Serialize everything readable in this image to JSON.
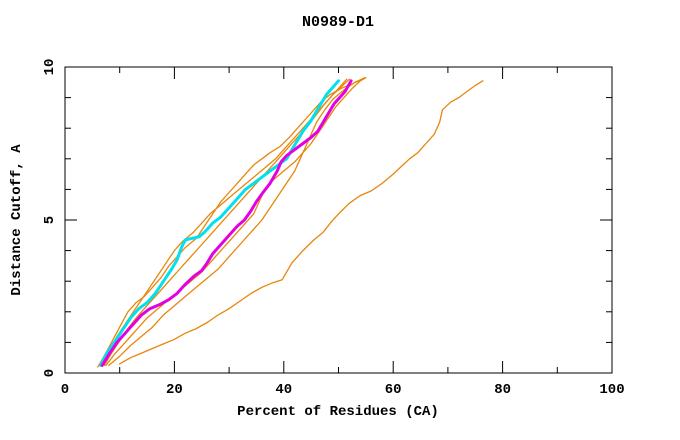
{
  "title": "N0989-D1",
  "colors": {
    "background": "#ffffff",
    "axis": "#000000",
    "orange": "#e8860b",
    "cyan": "#00e0ee",
    "magenta": "#e300e3"
  },
  "chart_data": {
    "type": "line",
    "title": "N0989-D1",
    "xlabel": "Percent of Residues (CA)",
    "ylabel": "Distance Cutoff, A",
    "xlim": [
      0,
      100
    ],
    "ylim": [
      0,
      10
    ],
    "x_major_ticks": [
      0,
      20,
      40,
      60,
      80,
      100
    ],
    "x_minor_step": 10,
    "y_major_ticks": [
      0,
      5,
      10
    ],
    "y_minor_step": 1,
    "grid": false,
    "legend_position": "none",
    "series": [
      {
        "name": "model-orange-1",
        "color": "#e8860b",
        "width": 1.3,
        "points": [
          [
            6,
            0.2
          ],
          [
            7,
            0.5
          ],
          [
            8.5,
            1.0
          ],
          [
            10,
            1.5
          ],
          [
            11.5,
            2.0
          ],
          [
            13,
            2.3
          ],
          [
            14.5,
            2.5
          ],
          [
            16,
            2.8
          ],
          [
            17.5,
            3.1
          ],
          [
            19,
            3.5
          ],
          [
            20.5,
            3.8
          ],
          [
            22,
            4.1
          ],
          [
            24,
            4.4
          ],
          [
            25.5,
            4.8
          ],
          [
            27,
            5.2
          ],
          [
            28.5,
            5.6
          ],
          [
            30,
            5.9
          ],
          [
            31.5,
            6.2
          ],
          [
            33,
            6.5
          ],
          [
            34.5,
            6.8
          ],
          [
            36,
            7.0
          ],
          [
            37.5,
            7.2
          ],
          [
            39.3,
            7.4
          ],
          [
            41,
            7.7
          ],
          [
            42.5,
            8.0
          ],
          [
            44,
            8.3
          ],
          [
            45.5,
            8.6
          ],
          [
            47,
            8.9
          ],
          [
            48.5,
            9.1
          ],
          [
            50.5,
            9.3
          ],
          [
            52.5,
            9.45
          ],
          [
            54.5,
            9.6
          ]
        ]
      },
      {
        "name": "model-orange-2",
        "color": "#e8860b",
        "width": 1.3,
        "points": [
          [
            6.8,
            0.25
          ],
          [
            8,
            0.7
          ],
          [
            9.5,
            1.2
          ],
          [
            11,
            1.6
          ],
          [
            12.5,
            2.0
          ],
          [
            14,
            2.4
          ],
          [
            15.5,
            2.8
          ],
          [
            17,
            3.2
          ],
          [
            18.5,
            3.6
          ],
          [
            20,
            4.0
          ],
          [
            21.5,
            4.3
          ],
          [
            23.5,
            4.6
          ],
          [
            25,
            4.9
          ],
          [
            26.5,
            5.2
          ],
          [
            28.5,
            5.5
          ],
          [
            30.5,
            5.8
          ],
          [
            32.5,
            6.1
          ],
          [
            34.5,
            6.4
          ],
          [
            36.5,
            6.7
          ],
          [
            38.5,
            7.0
          ],
          [
            40,
            7.3
          ],
          [
            41.5,
            7.6
          ],
          [
            43,
            7.9
          ],
          [
            44.5,
            8.2
          ],
          [
            46,
            8.5
          ],
          [
            47.5,
            8.8
          ],
          [
            49,
            9.1
          ],
          [
            50.5,
            9.35
          ],
          [
            52,
            9.6
          ]
        ]
      },
      {
        "name": "model-orange-3",
        "color": "#e8860b",
        "width": 1.3,
        "points": [
          [
            7.5,
            0.25
          ],
          [
            9,
            0.6
          ],
          [
            11,
            1.0
          ],
          [
            13,
            1.4
          ],
          [
            15,
            1.8
          ],
          [
            17,
            2.1
          ],
          [
            19,
            2.4
          ],
          [
            21,
            2.7
          ],
          [
            23,
            3.0
          ],
          [
            25,
            3.3
          ],
          [
            27,
            3.7
          ],
          [
            29,
            4.1
          ],
          [
            31,
            4.5
          ],
          [
            33,
            4.9
          ],
          [
            34.5,
            5.2
          ],
          [
            35.5,
            5.6
          ],
          [
            36.5,
            6.0
          ],
          [
            38,
            6.3
          ],
          [
            40,
            6.6
          ],
          [
            42,
            6.9
          ],
          [
            43.5,
            7.2
          ],
          [
            45,
            7.5
          ],
          [
            46.5,
            7.9
          ],
          [
            48,
            8.3
          ],
          [
            49.5,
            8.7
          ],
          [
            51,
            9.0
          ],
          [
            52.5,
            9.3
          ],
          [
            54,
            9.55
          ],
          [
            55,
            9.65
          ]
        ]
      },
      {
        "name": "model-orange-4",
        "color": "#e8860b",
        "width": 1.3,
        "points": [
          [
            8,
            0.25
          ],
          [
            10,
            0.55
          ],
          [
            12,
            0.9
          ],
          [
            14,
            1.2
          ],
          [
            16,
            1.5
          ],
          [
            18,
            1.9
          ],
          [
            20,
            2.2
          ],
          [
            22,
            2.5
          ],
          [
            24,
            2.8
          ],
          [
            26,
            3.1
          ],
          [
            28,
            3.4
          ],
          [
            30,
            3.8
          ],
          [
            32,
            4.2
          ],
          [
            34,
            4.6
          ],
          [
            36,
            5.0
          ],
          [
            37.5,
            5.4
          ],
          [
            39,
            5.8
          ],
          [
            40.5,
            6.2
          ],
          [
            42,
            6.6
          ],
          [
            43,
            7.0
          ],
          [
            44,
            7.4
          ],
          [
            45,
            7.8
          ],
          [
            46,
            8.2
          ],
          [
            47.5,
            8.6
          ],
          [
            49,
            8.95
          ],
          [
            51,
            9.25
          ],
          [
            53,
            9.5
          ],
          [
            54.8,
            9.65
          ]
        ]
      },
      {
        "name": "model-orange-5",
        "color": "#e8860b",
        "width": 1.3,
        "points": [
          [
            7.2,
            0.25
          ],
          [
            8.5,
            0.65
          ],
          [
            10,
            1.05
          ],
          [
            11.5,
            1.45
          ],
          [
            13,
            1.8
          ],
          [
            14.5,
            2.1
          ],
          [
            16,
            2.4
          ],
          [
            17.5,
            2.7
          ],
          [
            19,
            3.0
          ],
          [
            20.5,
            3.3
          ],
          [
            22,
            3.6
          ],
          [
            23.5,
            3.9
          ],
          [
            25,
            4.2
          ],
          [
            26.5,
            4.5
          ],
          [
            28,
            4.8
          ],
          [
            29.5,
            5.1
          ],
          [
            31,
            5.4
          ],
          [
            32.5,
            5.7
          ],
          [
            34,
            6.0
          ],
          [
            35.5,
            6.3
          ],
          [
            37,
            6.6
          ],
          [
            38.5,
            6.9
          ],
          [
            40,
            7.2
          ],
          [
            41.5,
            7.5
          ],
          [
            43,
            7.8
          ],
          [
            44.5,
            8.1
          ],
          [
            46,
            8.45
          ],
          [
            47.5,
            8.8
          ],
          [
            49,
            9.1
          ],
          [
            50.5,
            9.4
          ],
          [
            51.5,
            9.6
          ]
        ]
      },
      {
        "name": "model-orange-far-right",
        "color": "#e8860b",
        "width": 1.3,
        "points": [
          [
            10,
            0.3
          ],
          [
            12,
            0.5
          ],
          [
            14,
            0.65
          ],
          [
            16,
            0.8
          ],
          [
            18,
            0.95
          ],
          [
            20,
            1.1
          ],
          [
            22,
            1.3
          ],
          [
            24,
            1.45
          ],
          [
            26,
            1.65
          ],
          [
            28,
            1.9
          ],
          [
            30,
            2.1
          ],
          [
            32,
            2.35
          ],
          [
            34,
            2.6
          ],
          [
            36,
            2.8
          ],
          [
            38,
            2.95
          ],
          [
            39.7,
            3.05
          ],
          [
            41.5,
            3.6
          ],
          [
            43.5,
            4.0
          ],
          [
            45.5,
            4.35
          ],
          [
            47.2,
            4.6
          ],
          [
            48.5,
            4.9
          ],
          [
            50,
            5.2
          ],
          [
            52,
            5.55
          ],
          [
            54,
            5.8
          ],
          [
            56,
            5.95
          ],
          [
            58,
            6.2
          ],
          [
            60,
            6.5
          ],
          [
            61.5,
            6.75
          ],
          [
            63,
            7.0
          ],
          [
            64.5,
            7.2
          ],
          [
            66,
            7.5
          ],
          [
            67.5,
            7.8
          ],
          [
            68.5,
            8.2
          ],
          [
            69,
            8.6
          ],
          [
            70.5,
            8.85
          ],
          [
            72,
            9.0
          ],
          [
            73.5,
            9.2
          ],
          [
            75,
            9.4
          ],
          [
            76.4,
            9.55
          ]
        ]
      },
      {
        "name": "model-cyan",
        "color": "#00e0ee",
        "width": 3,
        "points": [
          [
            6.5,
            0.25
          ],
          [
            7.5,
            0.6
          ],
          [
            9,
            1.0
          ],
          [
            10.5,
            1.4
          ],
          [
            12,
            1.8
          ],
          [
            13.5,
            2.1
          ],
          [
            15,
            2.3
          ],
          [
            16.5,
            2.6
          ],
          [
            18,
            3.0
          ],
          [
            19.5,
            3.4
          ],
          [
            20.5,
            3.7
          ],
          [
            21.3,
            4.1
          ],
          [
            22,
            4.35
          ],
          [
            24.5,
            4.45
          ],
          [
            25.5,
            4.6
          ],
          [
            27,
            4.9
          ],
          [
            28.5,
            5.1
          ],
          [
            30,
            5.4
          ],
          [
            31.5,
            5.7
          ],
          [
            33,
            6.0
          ],
          [
            34.5,
            6.2
          ],
          [
            36,
            6.4
          ],
          [
            37.5,
            6.6
          ],
          [
            39,
            6.8
          ],
          [
            40.5,
            7.0
          ],
          [
            41.5,
            7.3
          ],
          [
            42.5,
            7.6
          ],
          [
            43.5,
            7.9
          ],
          [
            44.8,
            8.2
          ],
          [
            45.8,
            8.5
          ],
          [
            46.8,
            8.8
          ],
          [
            47.8,
            9.1
          ],
          [
            48.8,
            9.3
          ],
          [
            50,
            9.55
          ]
        ]
      },
      {
        "name": "model-magenta",
        "color": "#e300e3",
        "width": 3,
        "points": [
          [
            6.8,
            0.25
          ],
          [
            8,
            0.6
          ],
          [
            9.5,
            1.0
          ],
          [
            11,
            1.3
          ],
          [
            12.5,
            1.6
          ],
          [
            14,
            1.9
          ],
          [
            15.5,
            2.1
          ],
          [
            17.5,
            2.25
          ],
          [
            19,
            2.4
          ],
          [
            20.5,
            2.6
          ],
          [
            22,
            2.9
          ],
          [
            23.5,
            3.15
          ],
          [
            25,
            3.35
          ],
          [
            26,
            3.6
          ],
          [
            27,
            3.9
          ],
          [
            28.5,
            4.2
          ],
          [
            30,
            4.5
          ],
          [
            31.5,
            4.8
          ],
          [
            32.8,
            5.0
          ],
          [
            34,
            5.3
          ],
          [
            35,
            5.6
          ],
          [
            36.2,
            5.9
          ],
          [
            37.5,
            6.2
          ],
          [
            38.8,
            6.6
          ],
          [
            39.5,
            6.9
          ],
          [
            40.5,
            7.1
          ],
          [
            42,
            7.3
          ],
          [
            43.5,
            7.5
          ],
          [
            45,
            7.7
          ],
          [
            46.2,
            7.9
          ],
          [
            47.2,
            8.2
          ],
          [
            48.2,
            8.5
          ],
          [
            49.2,
            8.8
          ],
          [
            50.2,
            9.0
          ],
          [
            51.2,
            9.2
          ],
          [
            52.3,
            9.55
          ]
        ]
      }
    ]
  }
}
